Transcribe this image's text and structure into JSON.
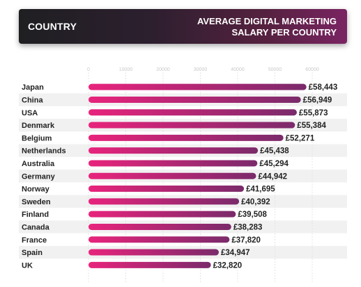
{
  "header": {
    "left_title": "COUNTRY",
    "right_title_line1": "AVERAGE DIGITAL MARKETING",
    "right_title_line2": "SALARY PER COUNTRY"
  },
  "colors": {
    "bar_start": "#e8247c",
    "bar_end": "#7b2a6b"
  },
  "chart_data": {
    "type": "bar",
    "orientation": "horizontal",
    "title": "AVERAGE DIGITAL MARKETING SALARY PER COUNTRY",
    "xlim": [
      0,
      60000
    ],
    "x_ticks": [
      0,
      10000,
      20000,
      30000,
      40000,
      50000,
      60000
    ],
    "x_tick_labels": [
      "0",
      "10000",
      "20000",
      "30000",
      "40000",
      "50000",
      "60000"
    ],
    "grid": true,
    "categories": [
      "Japan",
      "China",
      "USA",
      "Denmark",
      "Belgium",
      "Netherlands",
      "Australia",
      "Germany",
      "Norway",
      "Sweden",
      "Finland",
      "Canada",
      "France",
      "Spain",
      "UK"
    ],
    "values": [
      58443,
      56949,
      55873,
      55384,
      52271,
      45438,
      45294,
      44942,
      41695,
      40392,
      39508,
      38283,
      37820,
      34947,
      32820
    ],
    "value_labels": [
      "£58,443",
      "£56,949",
      "£55,873",
      "£55,384",
      "£52,271",
      "£45,438",
      "£45,294",
      "£44,942",
      "£41,695",
      "£40,392",
      "£39,508",
      "£38,283",
      "£37,820",
      "£34,947",
      "£32,820"
    ]
  }
}
